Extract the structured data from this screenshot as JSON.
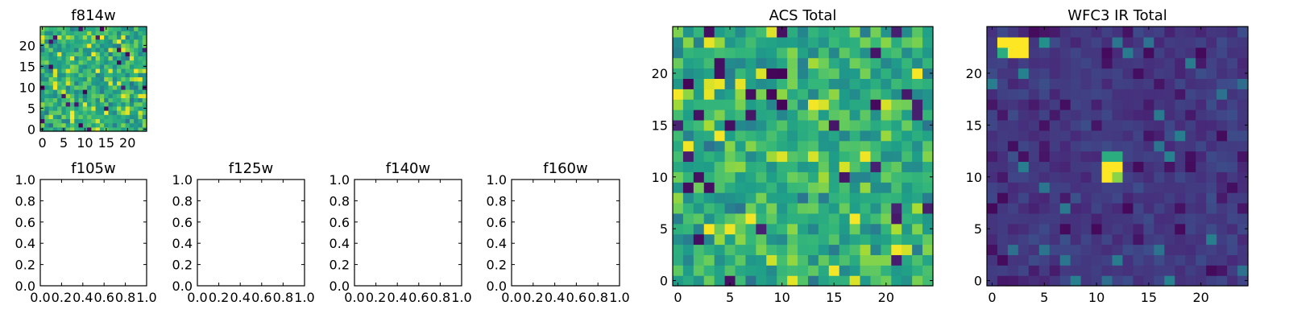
{
  "colormap": {
    "name": "viridis",
    "stops": [
      "#440154",
      "#482878",
      "#3e4989",
      "#31688e",
      "#26828e",
      "#1f9e89",
      "#35b779",
      "#6ece58",
      "#b5de2b",
      "#fde725"
    ]
  },
  "chart_data": [
    {
      "type": "heatmap",
      "title": "f814w",
      "grid_size": 25,
      "seed": 814,
      "value_profile": "acs",
      "xlim": [
        -0.5,
        24.5
      ],
      "ylim": [
        -0.5,
        24.5
      ],
      "xticks": [
        0,
        5,
        10,
        15,
        20
      ],
      "yticks": [
        0,
        5,
        10,
        15,
        20
      ]
    },
    {
      "type": "heatmap",
      "title": "ACS Total",
      "grid_size": 25,
      "seed": 1001,
      "value_profile": "acs",
      "xlim": [
        -0.5,
        24.5
      ],
      "ylim": [
        -0.5,
        24.5
      ],
      "xticks": [
        0,
        5,
        10,
        15,
        20
      ],
      "yticks": [
        0,
        5,
        10,
        15,
        20
      ]
    },
    {
      "type": "heatmap",
      "title": "WFC3 IR Total",
      "grid_size": 25,
      "seed": 3003,
      "value_profile": "wfc3",
      "hot_cells": [
        {
          "x": 1,
          "y": 23,
          "value": 1.0
        },
        {
          "x": 2,
          "y": 23,
          "value": 1.0
        },
        {
          "x": 3,
          "y": 23,
          "value": 1.0
        },
        {
          "x": 2,
          "y": 22,
          "value": 1.0
        },
        {
          "x": 3,
          "y": 22,
          "value": 1.0
        },
        {
          "x": 1,
          "y": 22,
          "value": 0.62
        },
        {
          "x": 5,
          "y": 23,
          "value": 0.5
        },
        {
          "x": 11,
          "y": 12,
          "value": 0.62
        },
        {
          "x": 12,
          "y": 12,
          "value": 0.62
        },
        {
          "x": 11,
          "y": 11,
          "value": 1.0
        },
        {
          "x": 12,
          "y": 11,
          "value": 1.0
        },
        {
          "x": 11,
          "y": 10,
          "value": 1.0
        },
        {
          "x": 12,
          "y": 10,
          "value": 0.82
        }
      ],
      "xlim": [
        -0.5,
        24.5
      ],
      "ylim": [
        -0.5,
        24.5
      ],
      "xticks": [
        0,
        5,
        10,
        15,
        20
      ],
      "yticks": [
        0,
        5,
        10,
        15,
        20
      ]
    },
    {
      "type": "empty",
      "title": "f105w",
      "xlim": [
        0,
        1
      ],
      "ylim": [
        0,
        1
      ],
      "xticks": [
        "0.0",
        "0.2",
        "0.4",
        "0.6",
        "0.8",
        "1.0"
      ],
      "yticks": [
        "0.0",
        "0.2",
        "0.4",
        "0.6",
        "0.8",
        "1.0"
      ]
    },
    {
      "type": "empty",
      "title": "f125w",
      "xlim": [
        0,
        1
      ],
      "ylim": [
        0,
        1
      ],
      "xticks": [
        "0.0",
        "0.2",
        "0.4",
        "0.6",
        "0.8",
        "1.0"
      ],
      "yticks": [
        "0.0",
        "0.2",
        "0.4",
        "0.6",
        "0.8",
        "1.0"
      ]
    },
    {
      "type": "empty",
      "title": "f140w",
      "xlim": [
        0,
        1
      ],
      "ylim": [
        0,
        1
      ],
      "xticks": [
        "0.0",
        "0.2",
        "0.4",
        "0.6",
        "0.8",
        "1.0"
      ],
      "yticks": [
        "0.0",
        "0.2",
        "0.4",
        "0.6",
        "0.8",
        "1.0"
      ]
    },
    {
      "type": "empty",
      "title": "f160w",
      "xlim": [
        0,
        1
      ],
      "ylim": [
        0,
        1
      ],
      "xticks": [
        "0.0",
        "0.2",
        "0.4",
        "0.6",
        "0.8",
        "1.0"
      ],
      "yticks": [
        "0.0",
        "0.2",
        "0.4",
        "0.6",
        "0.8",
        "1.0"
      ]
    }
  ]
}
